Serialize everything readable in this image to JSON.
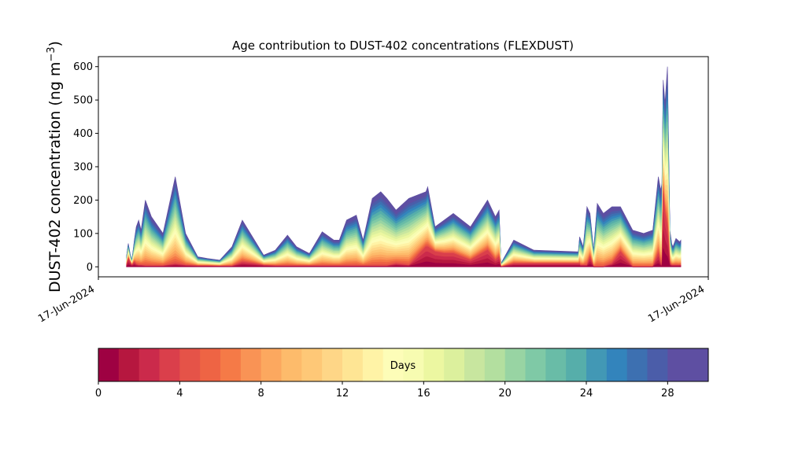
{
  "chart_data": {
    "type": "area",
    "title": "Age contribution to DUST-402 concentrations (FLEXDUST)",
    "ylabel_main": "DUST-402 concentration (ng m",
    "ylabel_sup": "−3",
    "ylabel_end": ")",
    "ylim": [
      -30,
      630
    ],
    "yticks": [
      0,
      100,
      200,
      300,
      400,
      500,
      600
    ],
    "xticks": [
      {
        "label": "17-Jun-2024",
        "x": 0
      },
      {
        "label": "17-Jun-2024",
        "x": 1
      }
    ],
    "grid": false,
    "x": [
      0.046,
      0.049,
      0.052,
      0.055,
      0.059,
      0.062,
      0.066,
      0.07,
      0.077,
      0.087,
      0.106,
      0.126,
      0.143,
      0.163,
      0.179,
      0.199,
      0.219,
      0.236,
      0.256,
      0.271,
      0.29,
      0.31,
      0.325,
      0.346,
      0.367,
      0.386,
      0.395,
      0.407,
      0.423,
      0.434,
      0.449,
      0.463,
      0.473,
      0.488,
      0.509,
      0.537,
      0.54,
      0.552,
      0.567,
      0.582,
      0.61,
      0.638,
      0.651,
      0.657,
      0.66,
      0.681,
      0.714,
      0.787,
      0.789,
      0.79,
      0.795,
      0.801,
      0.806,
      0.812,
      0.818,
      0.828,
      0.842,
      0.856,
      0.876,
      0.894,
      0.909,
      0.918,
      0.922,
      0.924,
      0.926,
      0.929,
      0.933,
      0.937,
      0.94,
      0.942,
      0.947,
      0.95,
      0.953,
      0.955
    ],
    "total": [
      30,
      70,
      40,
      20,
      80,
      120,
      140,
      110,
      200,
      150,
      100,
      270,
      100,
      30,
      25,
      20,
      60,
      140,
      80,
      35,
      50,
      95,
      60,
      40,
      105,
      80,
      80,
      140,
      155,
      80,
      205,
      225,
      205,
      170,
      205,
      225,
      240,
      120,
      140,
      160,
      120,
      200,
      150,
      170,
      10,
      80,
      50,
      45,
      90,
      85,
      60,
      180,
      160,
      50,
      190,
      160,
      180,
      180,
      110,
      100,
      110,
      270,
      230,
      250,
      560,
      490,
      600,
      110,
      70,
      60,
      85,
      80,
      75,
      80
    ],
    "young": [
      5,
      25,
      15,
      5,
      15,
      8,
      5,
      5,
      3,
      3,
      3,
      10,
      5,
      3,
      3,
      2,
      2,
      15,
      10,
      5,
      3,
      3,
      3,
      3,
      3,
      3,
      3,
      3,
      3,
      3,
      3,
      3,
      3,
      10,
      5,
      60,
      60,
      45,
      40,
      40,
      20,
      50,
      20,
      30,
      0,
      10,
      10,
      10,
      10,
      5,
      5,
      5,
      30,
      0,
      0,
      0,
      10,
      45,
      0,
      0,
      0,
      40,
      10,
      5,
      220,
      160,
      120,
      10,
      5,
      5,
      5,
      5,
      5,
      5
    ],
    "colorbar": {
      "label": "Days",
      "min": 0,
      "max": 30,
      "ticks": [
        0,
        4,
        8,
        12,
        16,
        20,
        24,
        28
      ],
      "colors": [
        "#9e0142",
        "#b6173f",
        "#cb2a4b",
        "#da3f4b",
        "#e55348",
        "#ee6444",
        "#f57a47",
        "#f99355",
        "#fca85f",
        "#fdbb6b",
        "#fec877",
        "#fed687",
        "#fee594",
        "#fff3a6",
        "#fdfdb8",
        "#f7fcb1",
        "#ecf7a1",
        "#dcf09d",
        "#c8e69f",
        "#b3df9f",
        "#98d4a3",
        "#7fc9a6",
        "#69bca7",
        "#56aeaa",
        "#4298b5",
        "#3384bc",
        "#3d70b1",
        "#4b5da9",
        "#5e4fa2",
        "#5e4fa2"
      ]
    }
  }
}
